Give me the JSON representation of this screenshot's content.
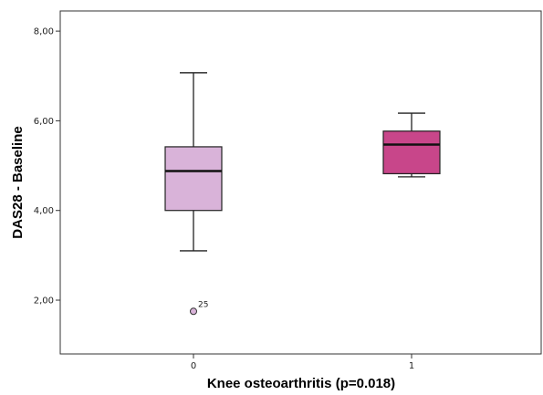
{
  "chart_data": {
    "type": "boxplot",
    "xlabel": "Knee osteoarthritis (p=0.018)",
    "ylabel": "DAS28 - Baseline",
    "ylim": [
      0.8,
      8.45
    ],
    "y_ticks": [
      2,
      4,
      6,
      8
    ],
    "y_tick_labels": [
      "2,00",
      "4,00",
      "6,00",
      "8,00"
    ],
    "categories": [
      "0",
      "1"
    ],
    "grid": false,
    "legend": "none",
    "boxes": [
      {
        "category": "0",
        "min": 3.1,
        "q1": 4.0,
        "median": 4.88,
        "q3": 5.42,
        "max": 7.07,
        "color": "#d9b3d9",
        "outliers": [
          {
            "value": 1.75,
            "label": "25"
          }
        ]
      },
      {
        "category": "1",
        "min": 4.75,
        "q1": 4.82,
        "median": 5.47,
        "q3": 5.77,
        "max": 6.17,
        "color": "#c8468a",
        "outliers": []
      }
    ]
  }
}
